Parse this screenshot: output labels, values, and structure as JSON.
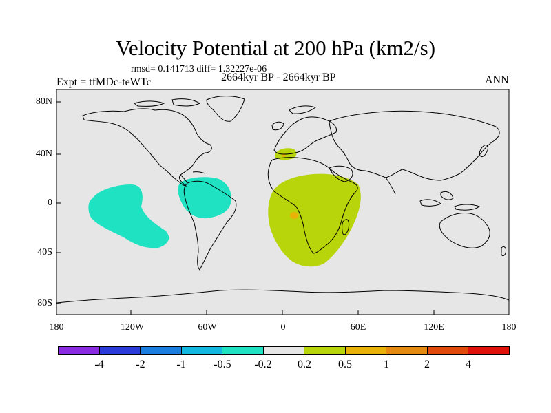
{
  "header": {
    "title": "Velocity Potential at 200 hPa (km2/s)",
    "stats": "rmsd= 0.141713 diff= 1.32227e-06",
    "period": "2664kyr BP - 2664kyr BP",
    "experiment": "Expt = tfMDc-teWTc",
    "season": "ANN"
  },
  "map": {
    "lat_ticks": [
      "80N",
      "40N",
      "0",
      "40S",
      "80S"
    ],
    "lon_ticks": [
      "180",
      "120W",
      "60W",
      "0",
      "60E",
      "120E",
      "180"
    ],
    "background_color": "#e6e6e6",
    "contour_regions": [
      {
        "name": "pacific-negative",
        "category": "-0.5 to -0.2",
        "color": "#1fe2c2",
        "center_lon": -145,
        "center_lat": -5
      },
      {
        "name": "amazon-negative",
        "category": "-0.5 to -0.2",
        "color": "#1fe2c2",
        "center_lon": -70,
        "center_lat": 5
      },
      {
        "name": "africa-positive",
        "category": "0.2 to 0.5",
        "color": "#b8d40a",
        "center_lon": 30,
        "center_lat": -10
      },
      {
        "name": "iberia-positive",
        "category": "0.2 to 0.5",
        "color": "#b8d40a",
        "center_lon": 0,
        "center_lat": 40
      },
      {
        "name": "africa-peak",
        "category": "0.5 to 1",
        "color": "#e8b208",
        "center_lon": 7,
        "center_lat": -10
      }
    ]
  },
  "colorbar": {
    "colors": [
      "#8a2be2",
      "#2a3bd9",
      "#1a7de0",
      "#13b8e0",
      "#1fe2c2",
      "#e6e6e6",
      "#b8d40a",
      "#e8b208",
      "#e48a10",
      "#e04a0a",
      "#e0100a"
    ],
    "labels": [
      "-4",
      "-2",
      "-1",
      "-0.5",
      "-0.2",
      "0.2",
      "0.5",
      "1",
      "2",
      "4"
    ]
  }
}
